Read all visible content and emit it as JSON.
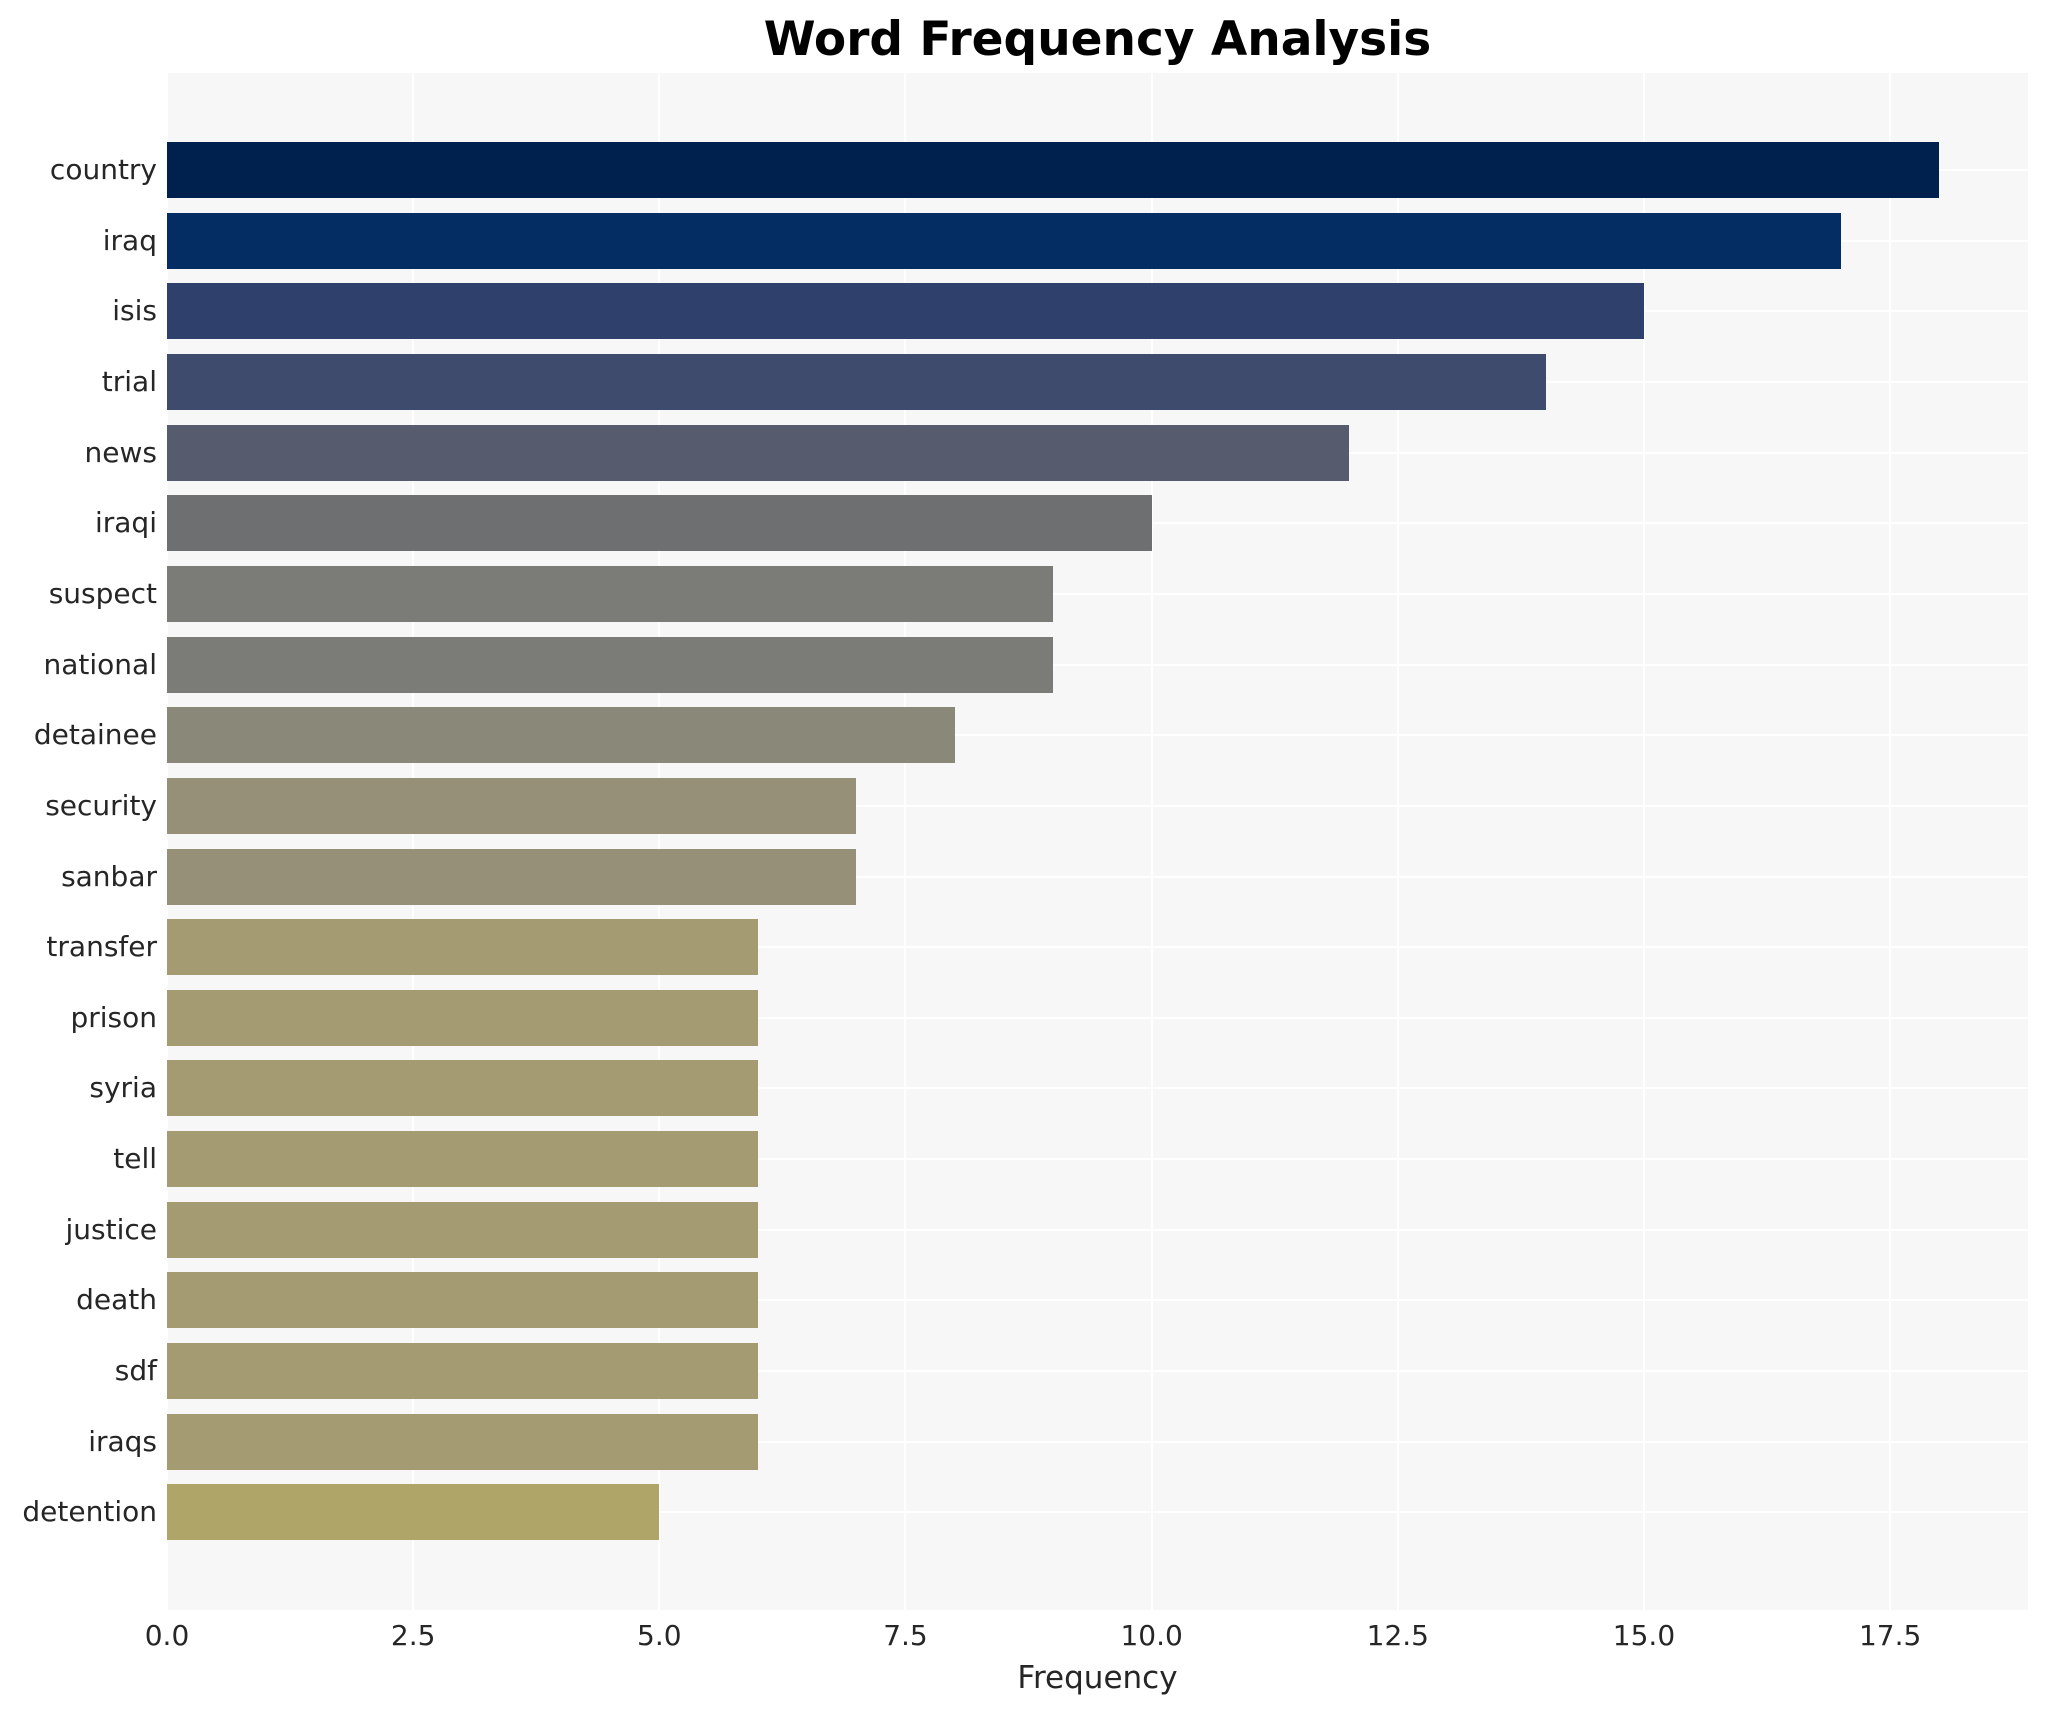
{
  "chart_data": {
    "type": "bar",
    "orientation": "horizontal",
    "title": "Word Frequency Analysis",
    "xlabel": "Frequency",
    "ylabel": "",
    "categories": [
      "country",
      "iraq",
      "isis",
      "trial",
      "news",
      "iraqi",
      "suspect",
      "national",
      "detainee",
      "security",
      "sanbar",
      "transfer",
      "prison",
      "syria",
      "tell",
      "justice",
      "death",
      "sdf",
      "iraqs",
      "detention"
    ],
    "values": [
      18,
      17,
      15,
      14,
      12,
      10,
      9,
      9,
      8,
      7,
      7,
      6,
      6,
      6,
      6,
      6,
      6,
      6,
      6,
      5
    ],
    "bar_colors": [
      "#00214d",
      "#032d63",
      "#2e406b",
      "#3f4b6c",
      "#565c6d",
      "#6e6f70",
      "#7b7b78",
      "#7b7b78",
      "#8a8879",
      "#969078",
      "#969078",
      "#a49b72",
      "#a49b72",
      "#a49b72",
      "#a49b72",
      "#a49b72",
      "#a49b72",
      "#a49b72",
      "#a49b72",
      "#b0a569"
    ],
    "xlim": [
      0,
      18.9
    ],
    "xticks": [
      0.0,
      2.5,
      5.0,
      7.5,
      10.0,
      12.5,
      15.0,
      17.5
    ],
    "xtick_labels": [
      "0.0",
      "2.5",
      "5.0",
      "7.5",
      "10.0",
      "12.5",
      "15.0",
      "17.5"
    ],
    "grid": true,
    "legend": "none",
    "plot_bg_color": "#f7f7f7",
    "grid_color": "#ffffff",
    "text_color": "#262626"
  }
}
